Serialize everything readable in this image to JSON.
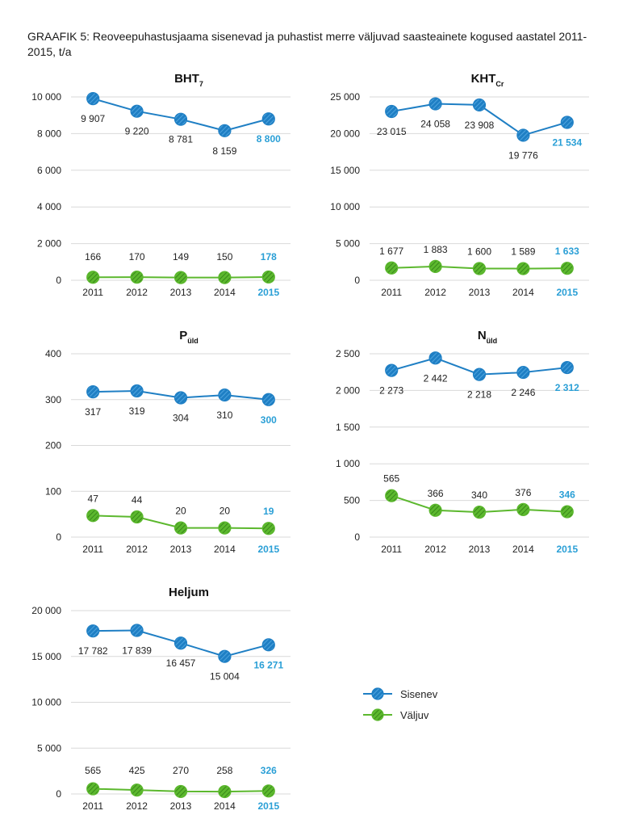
{
  "figure": {
    "title": "GRAAFIK 5: Reoveepuhastusjaama sisenevad ja puhastist merre väljuvad saasteainete kogused aastatel 2011-2015, t/a"
  },
  "colors": {
    "inflow": "#1f7fc4",
    "outflow": "#5cb82e",
    "highlight": "#2a9fd6"
  },
  "legend": [
    {
      "name": "Sisenev",
      "color": "#1f7fc4"
    },
    {
      "name": "Väljuv",
      "color": "#5cb82e"
    }
  ],
  "chart_data": [
    {
      "type": "line",
      "title": "BHT",
      "title_sub": "7",
      "categories": [
        "2011",
        "2012",
        "2013",
        "2014",
        "2015"
      ],
      "ylim": [
        0,
        10000
      ],
      "yticks": [
        "10 000",
        "8 000",
        "6 000",
        "4 000",
        "2 000",
        "0"
      ],
      "ytick_values": [
        10000,
        8000,
        6000,
        4000,
        2000,
        0
      ],
      "series": [
        {
          "name": "Sisenev",
          "values": [
            9907,
            9220,
            8781,
            8159,
            8800
          ],
          "labels": [
            "9 907",
            "9 220",
            "8 781",
            "8 159",
            "8 800"
          ]
        },
        {
          "name": "Väljuv",
          "values": [
            166,
            170,
            149,
            150,
            178
          ],
          "labels": [
            "166",
            "170",
            "149",
            "150",
            "178"
          ]
        }
      ]
    },
    {
      "type": "line",
      "title": "KHT",
      "title_sub": "Cr",
      "categories": [
        "2011",
        "2012",
        "2013",
        "2014",
        "2015"
      ],
      "ylim": [
        0,
        25000
      ],
      "yticks": [
        "25 000",
        "20 000",
        "15 000",
        "10 000",
        "5 000",
        "0"
      ],
      "ytick_values": [
        25000,
        20000,
        15000,
        10000,
        5000,
        0
      ],
      "series": [
        {
          "name": "Sisenev",
          "values": [
            23015,
            24058,
            23908,
            19776,
            21534
          ],
          "labels": [
            "23 015",
            "24 058",
            "23 908",
            "19 776",
            "21 534"
          ]
        },
        {
          "name": "Väljuv",
          "values": [
            1677,
            1883,
            1600,
            1589,
            1633
          ],
          "labels": [
            "1 677",
            "1 883",
            "1 600",
            "1 589",
            "1 633"
          ]
        }
      ]
    },
    {
      "type": "line",
      "title": "P",
      "title_sub": "üld",
      "categories": [
        "2011",
        "2012",
        "2013",
        "2014",
        "2015"
      ],
      "ylim": [
        0,
        400
      ],
      "yticks": [
        "400",
        "300",
        "200",
        "100",
        "0"
      ],
      "ytick_values": [
        400,
        300,
        200,
        100,
        0
      ],
      "series": [
        {
          "name": "Sisenev",
          "values": [
            317,
            319,
            304,
            310,
            300
          ],
          "labels": [
            "317",
            "319",
            "304",
            "310",
            "300"
          ]
        },
        {
          "name": "Väljuv",
          "values": [
            47,
            44,
            20,
            20,
            19
          ],
          "labels": [
            "47",
            "44",
            "20",
            "20",
            "19"
          ]
        }
      ]
    },
    {
      "type": "line",
      "title": "N",
      "title_sub": "üld",
      "categories": [
        "2011",
        "2012",
        "2013",
        "2014",
        "2015"
      ],
      "ylim": [
        0,
        2500
      ],
      "yticks": [
        "2 500",
        "2 000",
        "1 500",
        "1 000",
        "500",
        "0"
      ],
      "ytick_values": [
        2500,
        2000,
        1500,
        1000,
        500,
        0
      ],
      "series": [
        {
          "name": "Sisenev",
          "values": [
            2273,
            2442,
            2218,
            2246,
            2312
          ],
          "labels": [
            "2 273",
            "2 442",
            "2 218",
            "2 246",
            "2 312"
          ]
        },
        {
          "name": "Väljuv",
          "values": [
            565,
            366,
            340,
            376,
            346
          ],
          "labels": [
            "565",
            "366",
            "340",
            "376",
            "346"
          ]
        }
      ]
    },
    {
      "type": "line",
      "title": "Heljum",
      "title_sub": "",
      "categories": [
        "2011",
        "2012",
        "2013",
        "2014",
        "2015"
      ],
      "ylim": [
        0,
        20000
      ],
      "yticks": [
        "20 000",
        "15 000",
        "10 000",
        "5 000",
        "0"
      ],
      "ytick_values": [
        20000,
        15000,
        10000,
        5000,
        0
      ],
      "series": [
        {
          "name": "Sisenev",
          "values": [
            17782,
            17839,
            16457,
            15004,
            16271
          ],
          "labels": [
            "17 782",
            "17 839",
            "16 457",
            "15 004",
            "16 271"
          ]
        },
        {
          "name": "Väljuv",
          "values": [
            565,
            425,
            270,
            258,
            326
          ],
          "labels": [
            "565",
            "425",
            "270",
            "258",
            "326"
          ]
        }
      ]
    }
  ]
}
